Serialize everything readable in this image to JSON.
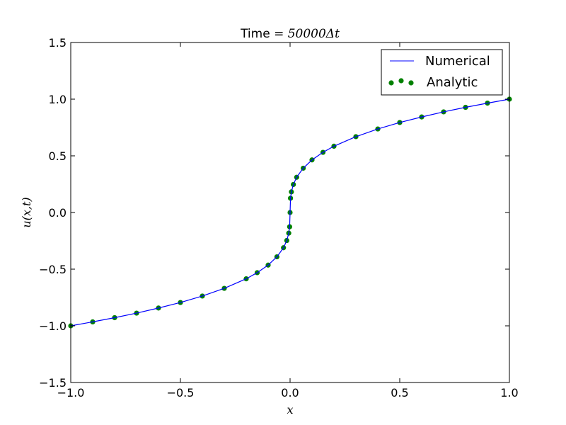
{
  "chart_data": {
    "type": "line",
    "title_prefix": "Time = ",
    "title_math": "50000Δt",
    "xlabel": "x",
    "ylabel": "u(x,t)",
    "xlim": [
      -1.0,
      1.0
    ],
    "ylim": [
      -1.5,
      1.5
    ],
    "xticks": [
      -1.0,
      -0.5,
      0.0,
      0.5,
      1.0
    ],
    "xtick_labels": [
      "−1.0",
      "−0.5",
      "0.0",
      "0.5",
      "1.0"
    ],
    "yticks": [
      -1.5,
      -1.0,
      -0.5,
      0.0,
      0.5,
      1.0,
      1.5
    ],
    "ytick_labels": [
      "−1.5",
      "−1.0",
      "−0.5",
      "0.0",
      "0.5",
      "1.0",
      "1.5"
    ],
    "grid": false,
    "legend_position": "top-right",
    "series": [
      {
        "name": "Numerical",
        "style": "line",
        "color": "#0000ff",
        "x": [
          -1.0,
          -0.9,
          -0.8,
          -0.7,
          -0.6,
          -0.5,
          -0.4,
          -0.3,
          -0.2,
          -0.15,
          -0.1,
          -0.06,
          -0.03,
          -0.015,
          -0.006,
          -0.002,
          0.0,
          0.002,
          0.006,
          0.015,
          0.03,
          0.06,
          0.1,
          0.15,
          0.2,
          0.3,
          0.4,
          0.5,
          0.6,
          0.7,
          0.8,
          0.9,
          1.0
        ],
        "y": [
          -1.0,
          -0.965,
          -0.928,
          -0.888,
          -0.843,
          -0.794,
          -0.737,
          -0.669,
          -0.585,
          -0.531,
          -0.464,
          -0.391,
          -0.311,
          -0.247,
          -0.182,
          -0.126,
          0.0,
          0.126,
          0.182,
          0.247,
          0.311,
          0.391,
          0.464,
          0.531,
          0.585,
          0.669,
          0.737,
          0.794,
          0.843,
          0.888,
          0.928,
          0.965,
          1.0
        ]
      },
      {
        "name": "Analytic",
        "style": "scatter",
        "color": "#008000",
        "x": [
          -1.0,
          -0.9,
          -0.8,
          -0.7,
          -0.6,
          -0.5,
          -0.4,
          -0.3,
          -0.2,
          -0.15,
          -0.1,
          -0.06,
          -0.03,
          -0.015,
          -0.006,
          -0.002,
          0.0,
          0.002,
          0.006,
          0.015,
          0.03,
          0.06,
          0.1,
          0.15,
          0.2,
          0.3,
          0.4,
          0.5,
          0.6,
          0.7,
          0.8,
          0.9,
          1.0
        ],
        "y": [
          -1.0,
          -0.965,
          -0.928,
          -0.888,
          -0.843,
          -0.794,
          -0.737,
          -0.669,
          -0.585,
          -0.531,
          -0.464,
          -0.391,
          -0.311,
          -0.247,
          -0.182,
          -0.126,
          0.0,
          0.126,
          0.182,
          0.247,
          0.311,
          0.391,
          0.464,
          0.531,
          0.585,
          0.669,
          0.737,
          0.794,
          0.843,
          0.888,
          0.928,
          0.965,
          1.0
        ]
      }
    ]
  }
}
